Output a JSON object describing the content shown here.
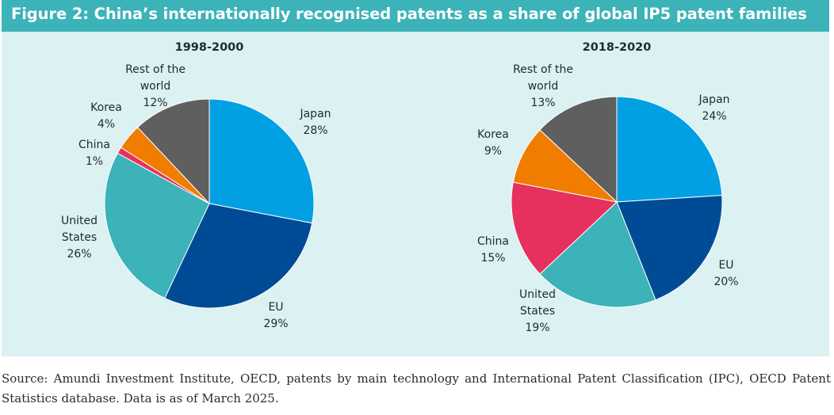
{
  "figure": {
    "title": "Figure 2: China’s internationally recognised patents as a share of global IP5 patent families"
  },
  "chart_data": [
    {
      "type": "pie",
      "title": "1998-2000",
      "slices": [
        {
          "label": [
            "Japan"
          ],
          "value": 28,
          "value_label": "28%",
          "color": "#00a0e3"
        },
        {
          "label": [
            "EU"
          ],
          "value": 29,
          "value_label": "29%",
          "color": "#004b96"
        },
        {
          "label": [
            "United",
            "States"
          ],
          "value": 26,
          "value_label": "26%",
          "color": "#3bb3b8"
        },
        {
          "label": [
            "China"
          ],
          "value": 1,
          "value_label": "1%",
          "color": "#e6315e"
        },
        {
          "label": [
            "Korea"
          ],
          "value": 4,
          "value_label": "4%",
          "color": "#f07d00"
        },
        {
          "label": [
            "Rest of the",
            "world"
          ],
          "value": 12,
          "value_label": "12%",
          "color": "#5f5f5f"
        }
      ]
    },
    {
      "type": "pie",
      "title": "2018-2020",
      "slices": [
        {
          "label": [
            "Japan"
          ],
          "value": 24,
          "value_label": "24%",
          "color": "#00a0e3"
        },
        {
          "label": [
            "EU"
          ],
          "value": 20,
          "value_label": "20%",
          "color": "#004b96"
        },
        {
          "label": [
            "United",
            "States"
          ],
          "value": 19,
          "value_label": "19%",
          "color": "#3bb3b8"
        },
        {
          "label": [
            "China"
          ],
          "value": 15,
          "value_label": "15%",
          "color": "#e6315e"
        },
        {
          "label": [
            "Korea"
          ],
          "value": 9,
          "value_label": "9%",
          "color": "#f07d00"
        },
        {
          "label": [
            "Rest of the",
            "world"
          ],
          "value": 13,
          "value_label": "13%",
          "color": "#5f5f5f"
        }
      ]
    }
  ],
  "source": {
    "text": "Source: Amundi Investment Institute, OECD, patents by main technology and International Patent Classification (IPC), OECD Patent Statistics database. Data is as of March 2025."
  }
}
